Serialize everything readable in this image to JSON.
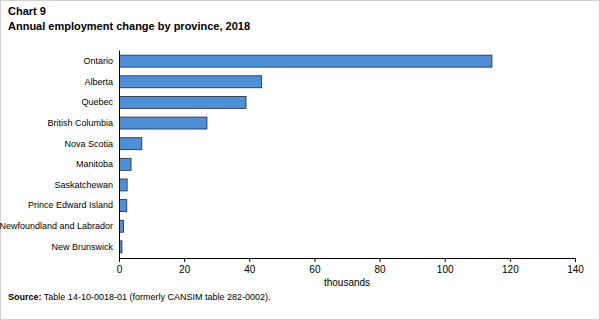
{
  "chart_data": {
    "type": "bar",
    "orientation": "horizontal",
    "title": "Chart 9",
    "subtitle": "Annual employment change by province, 2018",
    "categories": [
      "Ontario",
      "Alberta",
      "Quebec",
      "British Columbia",
      "Nova Scotia",
      "Manitoba",
      "Saskatchewan",
      "Prince Edward Island",
      "Newfoundland and Labrador",
      "New Brunswick"
    ],
    "values": [
      114.5,
      43.8,
      39.0,
      27.0,
      7.0,
      3.7,
      2.5,
      2.4,
      1.4,
      0.9
    ],
    "color": "#4f8fd6",
    "xlabel": "thousands",
    "xlim": [
      0,
      140
    ],
    "xticks": [
      0,
      20,
      40,
      60,
      80,
      100,
      120,
      140
    ],
    "grid": false,
    "source": [
      "Source:",
      " Table 14-10-0018-01 (formerly CANSIM table 282-0002)."
    ]
  }
}
